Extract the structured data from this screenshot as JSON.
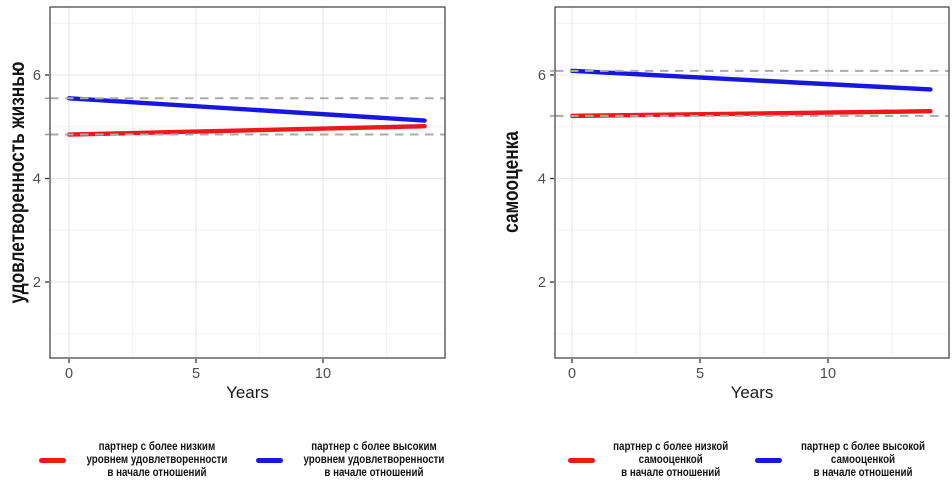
{
  "chart_data": [
    {
      "type": "line",
      "title": "",
      "xlabel": "Years",
      "ylabel": "удовлетворенность жизнью",
      "xticks": [
        0,
        5,
        10
      ],
      "yticks": [
        2,
        4,
        6
      ],
      "xlim": [
        -0.75,
        14.8
      ],
      "ylim": [
        0.53,
        7.31
      ],
      "grid": {
        "on": true,
        "minor_x": [
          2.5,
          7.5,
          12.5
        ],
        "minor_y": [
          1,
          3,
          5,
          7
        ]
      },
      "x": [
        0,
        14
      ],
      "series": [
        {
          "name": "партнер с более высоким уровнем удовлетворенности в начале отношений",
          "color": "#1717e0",
          "values": [
            5.55,
            5.12
          ]
        },
        {
          "name": "партнер с более низким уровнем удовлетворенности в начале отношений",
          "color": "#ef1717",
          "values": [
            4.85,
            5.01
          ]
        }
      ],
      "reference_lines": {
        "style": "dashed",
        "color": "#ababab",
        "values": [
          5.55,
          4.85
        ]
      },
      "legend_position": "bottom",
      "legend": [
        {
          "color": "#ef1717",
          "lines": [
            "партнер с более низким",
            "уровнем удовлетворенности",
            "в начале отношений"
          ]
        },
        {
          "color": "#1717e0",
          "lines": [
            "партнер с более высоким",
            "уровнем удовлетворенности",
            "в начале отношений"
          ]
        }
      ]
    },
    {
      "type": "line",
      "title": "",
      "xlabel": "Years",
      "ylabel": "самооценка",
      "xticks": [
        0,
        5,
        10
      ],
      "yticks": [
        2,
        4,
        6
      ],
      "xlim": [
        -0.66,
        14.73
      ],
      "ylim": [
        0.53,
        7.31
      ],
      "grid": {
        "on": true,
        "minor_x": [
          2.5,
          7.5,
          12.5
        ],
        "minor_y": [
          1,
          3,
          5,
          7
        ]
      },
      "x": [
        0,
        14
      ],
      "series": [
        {
          "name": "партнер с более высокой самооценкой в начале отношений",
          "color": "#1717e0",
          "values": [
            6.08,
            5.72
          ]
        },
        {
          "name": "партнер с более низкой самооценкой в начале отношений",
          "color": "#ef1717",
          "values": [
            5.21,
            5.3
          ]
        }
      ],
      "reference_lines": {
        "style": "dashed",
        "color": "#ababab",
        "values": [
          6.08,
          5.21
        ]
      },
      "legend_position": "bottom",
      "legend": [
        {
          "color": "#ef1717",
          "lines": [
            "партнер с более низкой",
            "самооценкой",
            "в начале отношений"
          ]
        },
        {
          "color": "#1717e0",
          "lines": [
            "партнер с более высокой",
            "самооценкой",
            "в начале отношений"
          ]
        }
      ]
    }
  ]
}
